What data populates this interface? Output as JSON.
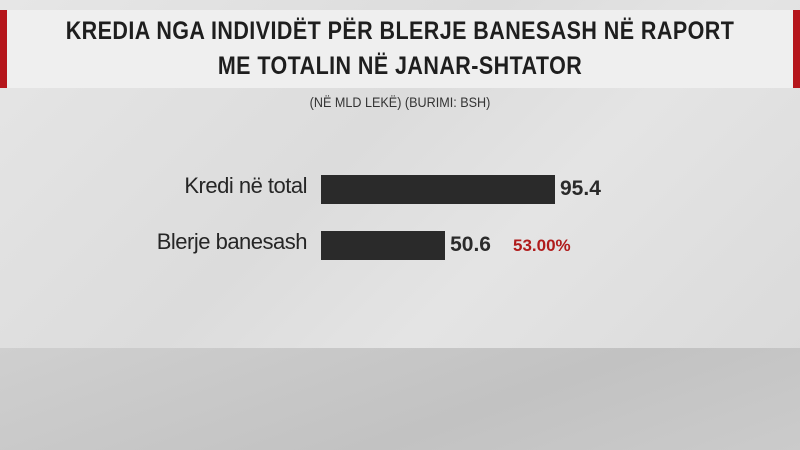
{
  "chart_data": {
    "type": "bar",
    "orientation": "horizontal",
    "title": "KREDIA NGA INDIVIDËT PËR BLERJE BANESASH NË RAPORT ME TOTALIN NË JANAR-SHTATOR",
    "subtitle": "(NË MLD LEKË) (BURIMI: BSH)",
    "categories": [
      "Kredi në total",
      "Blerje banesash"
    ],
    "values": [
      95.4,
      50.6
    ],
    "value_labels": [
      "95.4",
      "50.6"
    ],
    "annotations": [
      "",
      "53.00%"
    ],
    "bar_color": "#2a2a2a",
    "annotation_color": "#b01c1c",
    "accent_color": "#b5161b",
    "grid": false
  }
}
